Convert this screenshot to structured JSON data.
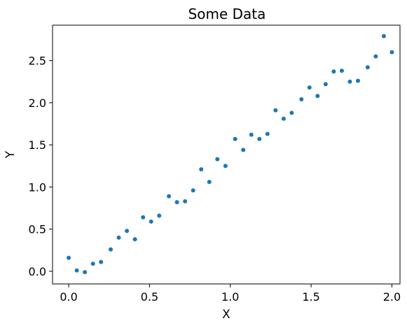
{
  "chart_data": {
    "type": "scatter",
    "title": "Some Data",
    "xlabel": "X",
    "ylabel": "Y",
    "xlim": [
      -0.1,
      2.05
    ],
    "ylim": [
      -0.15,
      2.92
    ],
    "xticks": [
      0.0,
      0.5,
      1.0,
      1.5,
      2.0
    ],
    "xtick_labels": [
      "0.0",
      "0.5",
      "1.0",
      "1.5",
      "2.0"
    ],
    "yticks": [
      0.0,
      0.5,
      1.0,
      1.5,
      2.0,
      2.5
    ],
    "ytick_labels": [
      "0.0",
      "0.5",
      "1.0",
      "1.5",
      "2.0",
      "2.5"
    ],
    "grid": false,
    "marker_color": "#1f77b4",
    "series": [
      {
        "x": [
          0.0,
          0.05,
          0.1,
          0.15,
          0.2,
          0.26,
          0.31,
          0.36,
          0.41,
          0.46,
          0.51,
          0.56,
          0.62,
          0.67,
          0.72,
          0.77,
          0.82,
          0.87,
          0.92,
          0.97,
          1.03,
          1.08,
          1.13,
          1.18,
          1.23,
          1.28,
          1.33,
          1.38,
          1.44,
          1.49,
          1.54,
          1.59,
          1.64,
          1.69,
          1.74,
          1.79,
          1.85,
          1.9,
          1.95,
          2.0
        ],
        "y": [
          0.16,
          0.01,
          -0.01,
          0.09,
          0.11,
          0.26,
          0.4,
          0.48,
          0.38,
          0.64,
          0.59,
          0.66,
          0.89,
          0.82,
          0.83,
          0.96,
          1.21,
          1.06,
          1.33,
          1.25,
          1.57,
          1.44,
          1.62,
          1.57,
          1.63,
          1.91,
          1.81,
          1.88,
          2.04,
          2.18,
          2.08,
          2.22,
          2.37,
          2.38,
          2.25,
          2.26,
          2.42,
          2.55,
          2.79,
          2.6
        ]
      }
    ]
  }
}
